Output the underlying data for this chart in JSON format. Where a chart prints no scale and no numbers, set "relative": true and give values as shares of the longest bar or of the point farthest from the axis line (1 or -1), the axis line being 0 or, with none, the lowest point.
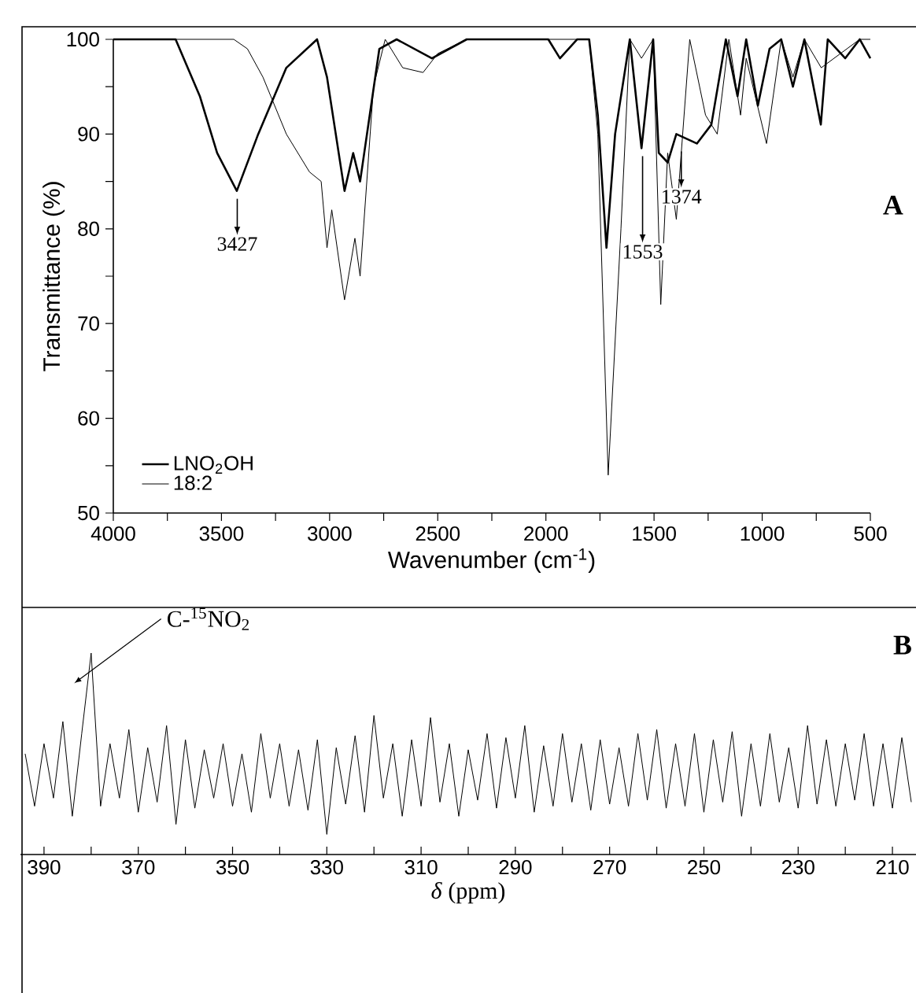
{
  "chart_data": [
    {
      "type": "line",
      "xlabel": "Wavenumber (cm$^{-1}$)",
      "ylabel": "Transmittance (%)",
      "xlim": [
        4000,
        500
      ],
      "ylim": [
        50,
        100
      ],
      "xticks": [
        4000,
        {
          "value": 3750,
          "label": null
        },
        3500,
        {
          "value": 3250,
          "label": null
        },
        3000,
        {
          "value": 2750,
          "label": null
        },
        2500,
        {
          "value": 2250,
          "label": null
        },
        2000,
        {
          "value": 1750,
          "label": null
        },
        1500,
        {
          "value": 1250,
          "label": null
        },
        1000,
        {
          "value": 750,
          "label": null
        },
        500
      ],
      "yticks": [
        50,
        {
          "value": 55,
          "label": null
        },
        60,
        {
          "value": 65,
          "label": null
        },
        70,
        {
          "value": 75,
          "label": null
        },
        80,
        {
          "value": 85,
          "label": null
        },
        90,
        {
          "value": 95,
          "label": null
        },
        100
      ],
      "grid": false,
      "legend": "bottom left",
      "line_style": "solid",
      "marker": "none",
      "series": [
        {
          "name": "LNO$_{2}$OH",
          "color": "#000000",
          "x": [
            4000,
            3712,
            3600,
            3520,
            3429,
            3330,
            3200,
            3058,
            3012,
            2931,
            2891,
            2859,
            2770,
            2690,
            2527,
            2366,
            2100,
            1989,
            1935,
            1855,
            1800,
            1760,
            1720,
            1680,
            1612,
            1558,
            1504,
            1478,
            1437,
            1397,
            1302,
            1235,
            1168,
            1114,
            1074,
            1020,
            966,
            912,
            858,
            805,
            729,
            697,
            616,
            549,
            500
          ],
          "values": [
            100,
            100,
            94,
            88,
            84,
            90,
            97,
            100,
            96,
            84,
            88,
            85,
            99,
            100,
            98,
            100,
            100,
            100,
            98,
            100,
            100,
            92,
            78,
            90,
            100,
            88.5,
            100,
            88,
            87,
            90,
            89,
            91,
            100,
            94,
            100,
            93,
            99,
            100,
            95,
            100,
            91,
            100,
            98,
            100,
            98
          ]
        },
        {
          "name": "18:2",
          "color": "#000000",
          "x": [
            4000,
            3443,
            3380,
            3308,
            3200,
            3093,
            3039,
            3012,
            2990,
            2931,
            2883,
            2859,
            2797,
            2743,
            2662,
            2568,
            2500,
            2366,
            1855,
            1800,
            1760,
            1712,
            1653,
            1612,
            1558,
            1504,
            1469,
            1437,
            1397,
            1335,
            1262,
            1208,
            1154,
            1100,
            1074,
            980,
            912,
            858,
            805,
            727,
            549,
            500
          ],
          "values": [
            100,
            100,
            99,
            96,
            90,
            86,
            85,
            78,
            82,
            72.5,
            79,
            75,
            95,
            100,
            97,
            96.5,
            98.5,
            100,
            100,
            100,
            90,
            54,
            80,
            100,
            98,
            100,
            72,
            88,
            81,
            100,
            92,
            90,
            100,
            92,
            98,
            89,
            100,
            96,
            100,
            97,
            100,
            100
          ]
        }
      ],
      "annotations": [
        {
          "text": "3427",
          "x": 3427,
          "y": 84
        },
        {
          "text": "1553",
          "x": 1553,
          "y": 88.5
        },
        {
          "text": "1374",
          "x": 1374,
          "y": 89
        },
        "A"
      ]
    },
    {
      "type": "line",
      "relative": true,
      "xlabel": "*δ* (ppm)",
      "xlim": [
        395,
        205
      ],
      "xticks": [
        390,
        {
          "value": 380,
          "label": null
        },
        370,
        {
          "value": 360,
          "label": null
        },
        350,
        {
          "value": 340,
          "label": null
        },
        330,
        {
          "value": 320,
          "label": null
        },
        310,
        {
          "value": 300,
          "label": null
        },
        290,
        {
          "value": 280,
          "label": null
        },
        270,
        {
          "value": 260,
          "label": null
        },
        250,
        {
          "value": 240,
          "label": null
        },
        230,
        {
          "value": 220,
          "label": null
        },
        210
      ],
      "grid": false,
      "line_style": "solid",
      "marker": "none",
      "color": "#000000",
      "x": [
        394,
        392,
        390,
        388,
        386,
        384,
        382,
        380,
        378,
        376,
        374,
        372,
        370,
        368,
        366,
        364,
        362,
        360,
        358,
        356,
        354,
        352,
        350,
        348,
        346,
        344,
        342,
        340,
        338,
        336,
        334,
        332,
        330,
        328,
        326,
        324,
        322,
        320,
        318,
        316,
        314,
        312,
        310,
        308,
        306,
        304,
        302,
        300,
        298,
        296,
        294,
        292,
        290,
        288,
        286,
        284,
        282,
        280,
        278,
        276,
        274,
        272,
        270,
        268,
        266,
        264,
        262,
        260,
        258,
        256,
        254,
        252,
        250,
        248,
        246,
        244,
        242,
        240,
        238,
        236,
        234,
        232,
        230,
        228,
        226,
        224,
        222,
        220,
        218,
        216,
        214,
        212,
        210,
        208,
        206
      ],
      "values": [
        0.5,
        0.24,
        0.55,
        0.28,
        0.66,
        0.19,
        0.6,
        1,
        0.24,
        0.55,
        0.28,
        0.62,
        0.21,
        0.53,
        0.26,
        0.64,
        0.15,
        0.57,
        0.23,
        0.52,
        0.28,
        0.55,
        0.24,
        0.5,
        0.21,
        0.6,
        0.28,
        0.55,
        0.24,
        0.52,
        0.22,
        0.57,
        0.1,
        0.53,
        0.25,
        0.59,
        0.21,
        0.69,
        0.28,
        0.55,
        0.19,
        0.57,
        0.24,
        0.68,
        0.26,
        0.55,
        0.19,
        0.52,
        0.27,
        0.6,
        0.23,
        0.58,
        0.28,
        0.64,
        0.21,
        0.54,
        0.24,
        0.6,
        0.26,
        0.55,
        0.22,
        0.57,
        0.25,
        0.53,
        0.24,
        0.6,
        0.27,
        0.62,
        0.23,
        0.55,
        0.24,
        0.6,
        0.21,
        0.57,
        0.26,
        0.61,
        0.19,
        0.55,
        0.24,
        0.6,
        0.26,
        0.53,
        0.23,
        0.64,
        0.25,
        0.57,
        0.24,
        0.55,
        0.27,
        0.6,
        0.24,
        0.55,
        0.23,
        0.58,
        0.26
      ],
      "annotations": [
        "C-$^{15}$NO$_{2}$",
        "B"
      ]
    }
  ]
}
